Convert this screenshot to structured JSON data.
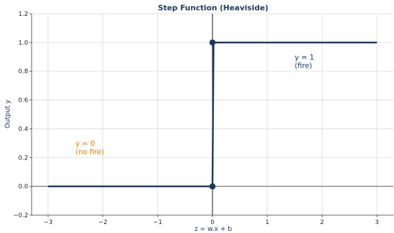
{
  "chart_data": {
    "type": "line",
    "title": "Step Function (Heaviside)",
    "xlabel": "z = w.x + b",
    "ylabel": "Output y",
    "xlim": [
      -3.3,
      3.3
    ],
    "ylim": [
      -0.2,
      1.2
    ],
    "xticks": [
      -3,
      -2,
      -1,
      0,
      1,
      2,
      3
    ],
    "xtick_labels": [
      "−3",
      "−2",
      "−1",
      "0",
      "1",
      "2",
      "3"
    ],
    "yticks": [
      -0.2,
      0.0,
      0.2,
      0.4,
      0.6,
      0.8,
      1.0,
      1.2
    ],
    "ytick_labels": [
      "−0.2",
      "0.0",
      "0.2",
      "0.4",
      "0.6",
      "0.8",
      "1.0",
      "1.2"
    ],
    "grid": true,
    "series": [
      {
        "x": [
          -3,
          -0.02,
          0,
          0.02,
          3
        ],
        "y": [
          0,
          0,
          0,
          1,
          1
        ]
      }
    ],
    "markers": [
      {
        "x": 0,
        "y": 1
      },
      {
        "x": 0,
        "y": 0
      }
    ],
    "reference_lines": {
      "horizontal_y": 0,
      "vertical_x": 0
    },
    "annotations": [
      {
        "x": 1.5,
        "y": 0.88,
        "lines": [
          "y = 1",
          "(fire)"
        ],
        "color": "#1f3a5f"
      },
      {
        "x": -2.5,
        "y": 0.28,
        "lines": [
          "y = 0",
          "(no fire)"
        ],
        "color": "#e07b00"
      }
    ],
    "colors": {
      "line": "#1f3a5f",
      "title": "#1f3a5f",
      "axis_label": "#1f3a5f",
      "grid": "#d9d9d9",
      "reference": "#555555"
    }
  }
}
